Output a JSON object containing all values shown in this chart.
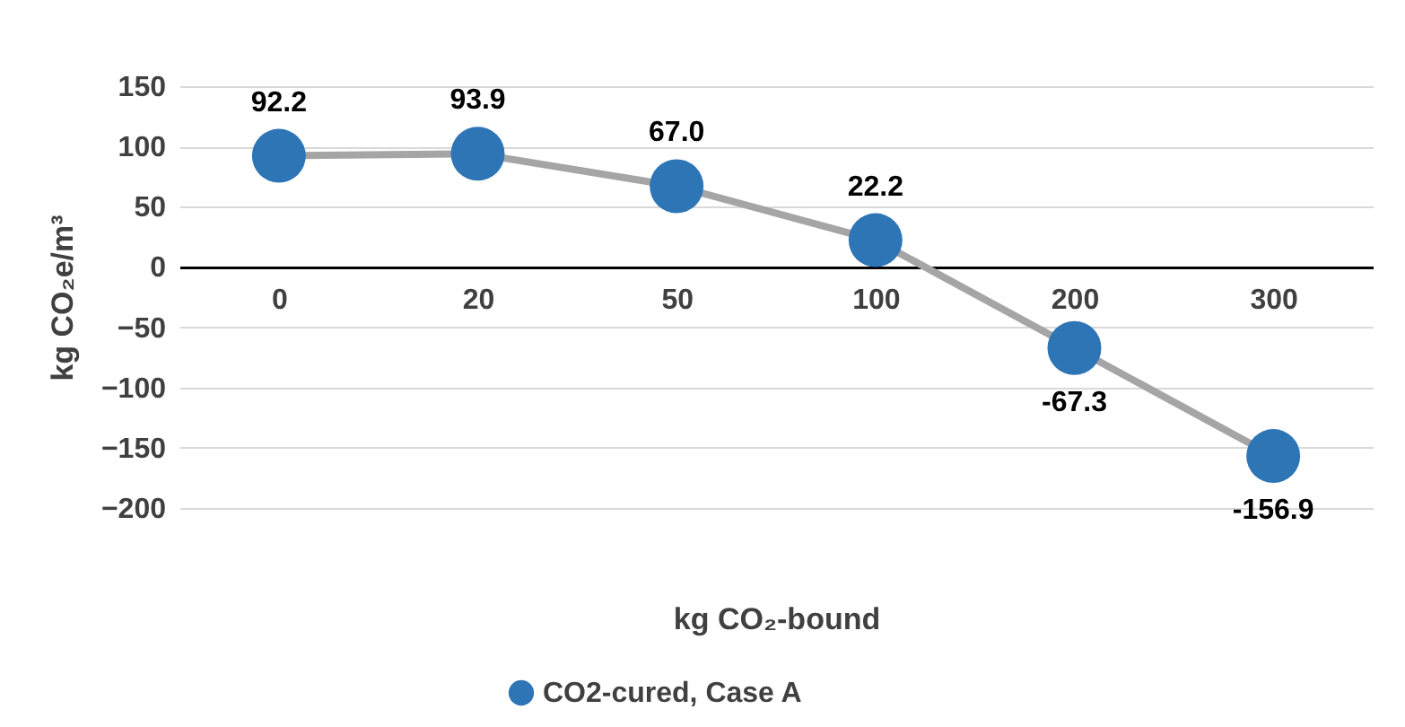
{
  "chart_data": {
    "type": "line",
    "xlabel": "kg CO₂-bound",
    "ylabel": "kg CO₂e/m³",
    "categories": [
      "0",
      "20",
      "50",
      "100",
      "200",
      "300"
    ],
    "series": [
      {
        "name": "CO2-cured, Case A",
        "color": "#2e75b6",
        "values": [
          92.2,
          93.9,
          67.0,
          22.2,
          -67.3,
          -156.9
        ],
        "value_labels": [
          "92.2",
          "93.9",
          "67.0",
          "22.2",
          "-67.3",
          "-156.9"
        ]
      }
    ],
    "ylim": [
      -200,
      150
    ],
    "yticks": [
      -200,
      -150,
      -100,
      -50,
      0,
      50,
      100,
      150
    ],
    "grid": "y",
    "legend": "bottom",
    "marker": "circle",
    "line_style": "solid",
    "data_labels": true
  }
}
